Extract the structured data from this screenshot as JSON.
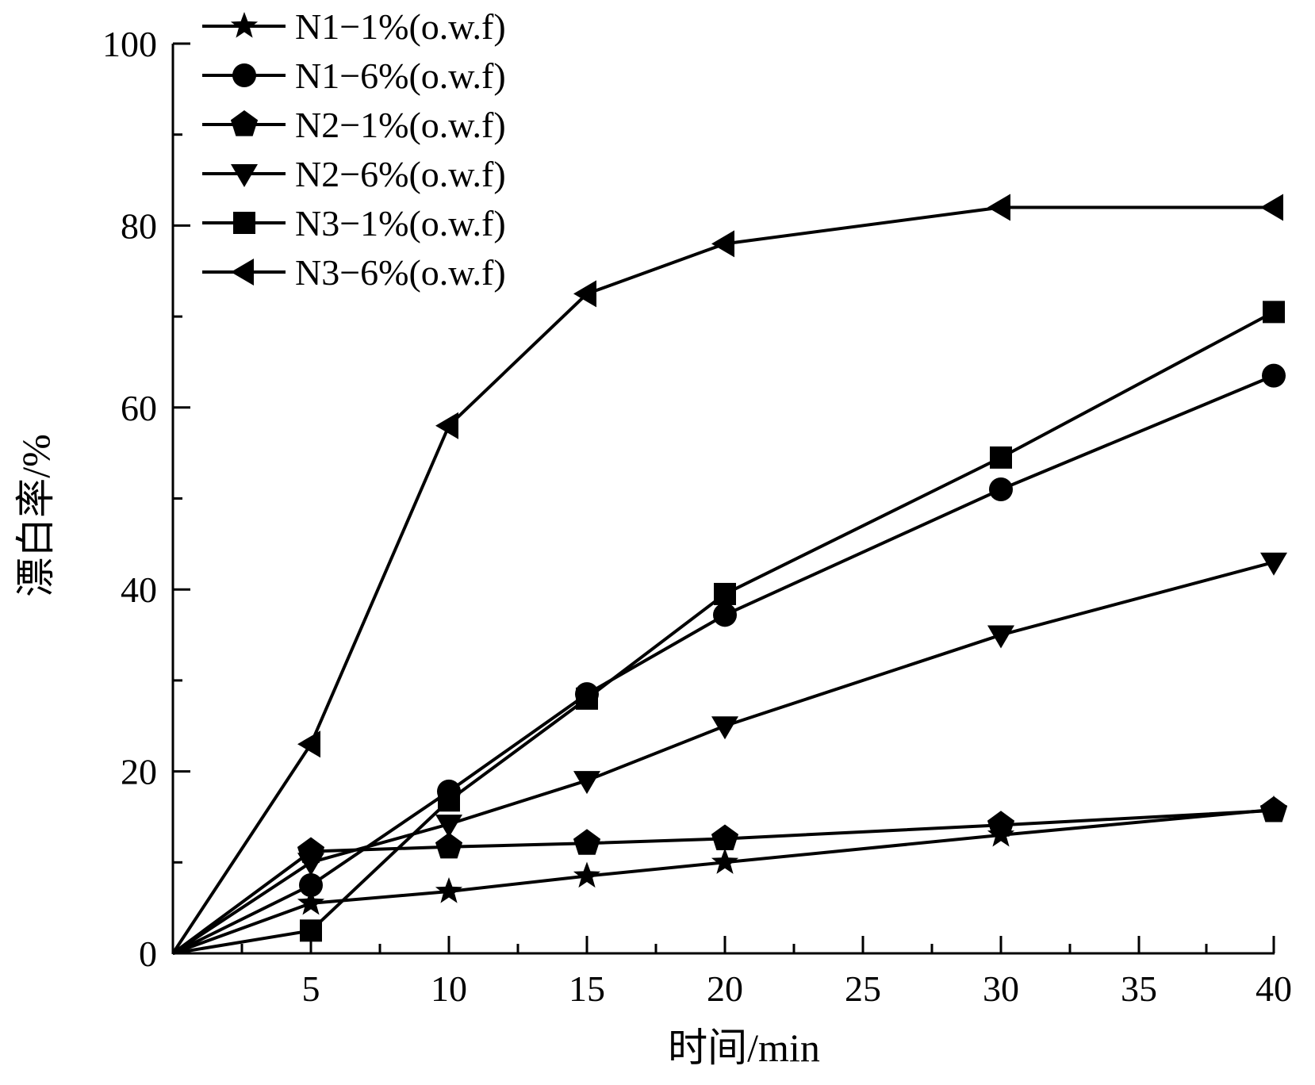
{
  "chart_data": {
    "type": "line",
    "x": [
      0,
      5,
      10,
      15,
      20,
      30,
      40
    ],
    "x_tick_labels": [
      "5",
      "10",
      "15",
      "20",
      "25",
      "30",
      "35",
      "40"
    ],
    "y_tick_labels": [
      "0",
      "20",
      "40",
      "60",
      "80",
      "100"
    ],
    "xlabel": "时间/min",
    "ylabel": "漂白率/%",
    "ylim": [
      0,
      100
    ],
    "legend_position": "top-left",
    "grid": false,
    "series": [
      {
        "name": "N1−1%(o.w.f)",
        "marker": "star",
        "values": [
          0,
          5.5,
          6.8,
          8.5,
          10,
          13,
          15.8
        ]
      },
      {
        "name": "N1−6%(o.w.f)",
        "marker": "circle",
        "values": [
          0,
          7.5,
          17.8,
          28.5,
          37.2,
          51,
          63.5
        ]
      },
      {
        "name": "N2−1%(o.w.f)",
        "marker": "pentagon",
        "values": [
          0,
          11.2,
          11.7,
          12.1,
          12.6,
          14.1,
          15.7
        ]
      },
      {
        "name": "N2−6%(o.w.f)",
        "marker": "triangle-down",
        "values": [
          0,
          10,
          14.2,
          19,
          25,
          35,
          43
        ]
      },
      {
        "name": "N3−1%(o.w.f)",
        "marker": "square",
        "values": [
          0,
          2.5,
          16.8,
          28,
          39.5,
          54.5,
          70.5
        ]
      },
      {
        "name": "N3−6%(o.w.f)",
        "marker": "triangle-left",
        "values": [
          0,
          23,
          58,
          72.5,
          78,
          82,
          82
        ]
      }
    ],
    "line_color": "#000000"
  }
}
